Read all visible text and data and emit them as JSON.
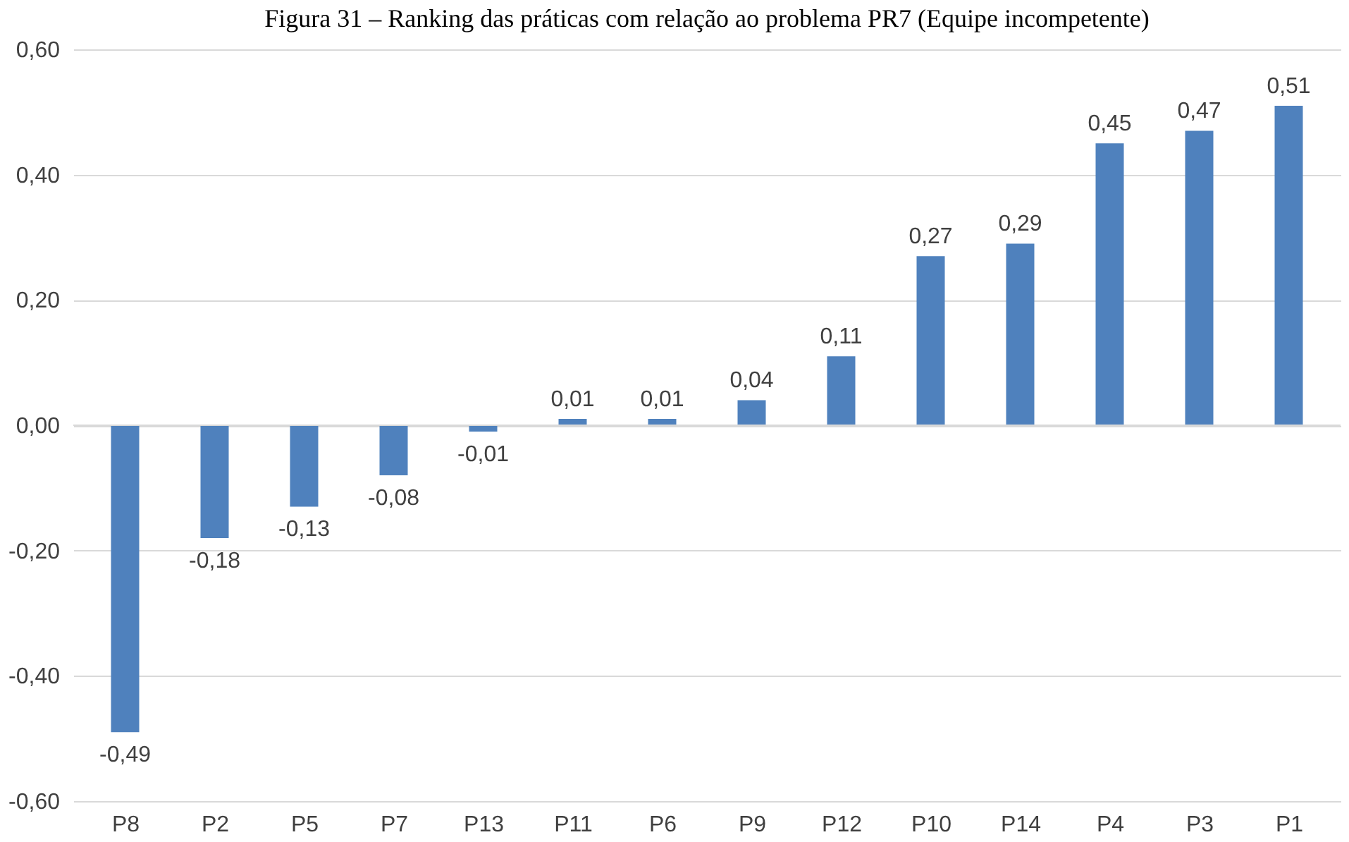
{
  "chart_data": {
    "type": "bar",
    "title": "Figura 31 – Ranking das práticas com relação ao problema PR7 (Equipe incompetente)",
    "categories": [
      "P8",
      "P2",
      "P5",
      "P7",
      "P13",
      "P11",
      "P6",
      "P9",
      "P12",
      "P10",
      "P14",
      "P4",
      "P3",
      "P1"
    ],
    "values": [
      -0.49,
      -0.18,
      -0.13,
      -0.08,
      -0.01,
      0.01,
      0.01,
      0.04,
      0.11,
      0.27,
      0.29,
      0.45,
      0.47,
      0.51
    ],
    "value_labels": [
      "-0,49",
      "-0,18",
      "-0,13",
      "-0,08",
      "-0,01",
      "0,01",
      "0,01",
      "0,04",
      "0,11",
      "0,27",
      "0,29",
      "0,45",
      "0,47",
      "0,51"
    ],
    "color": "#4f81bd",
    "ylim": [
      -0.6,
      0.6
    ],
    "yticks": [
      {
        "value": -0.6,
        "label": "-0,60"
      },
      {
        "value": -0.4,
        "label": "-0,40"
      },
      {
        "value": -0.2,
        "label": "-0,20"
      },
      {
        "value": 0,
        "label": "0,00"
      },
      {
        "value": 0.2,
        "label": "0,20"
      },
      {
        "value": 0.4,
        "label": "0,40"
      },
      {
        "value": 0.6,
        "label": "0,60"
      }
    ],
    "grid": "y"
  }
}
